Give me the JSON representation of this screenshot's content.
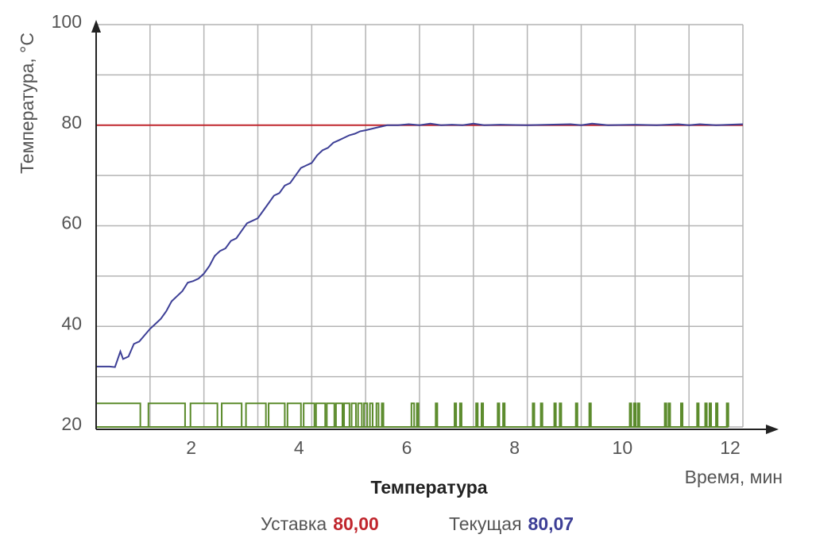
{
  "chart_data": {
    "type": "line",
    "title": "Температура",
    "ylabel": "Температура, °С",
    "xlabel": "Время, мин",
    "xlim": [
      0,
      12
    ],
    "ylim": [
      20,
      100
    ],
    "xticks": [
      2,
      4,
      6,
      8,
      10,
      12
    ],
    "xminor": [
      1,
      3,
      5,
      7,
      9,
      11
    ],
    "yticks": [
      20,
      40,
      60,
      80,
      100
    ],
    "yminor": [
      30,
      50,
      70,
      90
    ],
    "grid": true,
    "series": [
      {
        "name": "Уставка",
        "color": "#c0262d",
        "legend_value": 80.0,
        "legend_value_label": "80,00",
        "x": [
          0,
          12
        ],
        "values": [
          80,
          80
        ]
      },
      {
        "name": "Текущая",
        "color": "#3d3f96",
        "legend_value": 80.07,
        "legend_value_label": "80,07",
        "x": [
          0,
          0.25,
          0.35,
          0.45,
          0.5,
          0.6,
          0.7,
          0.8,
          1.0,
          1.1,
          1.2,
          1.3,
          1.4,
          1.5,
          1.6,
          1.7,
          1.8,
          1.9,
          2.0,
          2.1,
          2.2,
          2.3,
          2.4,
          2.5,
          2.6,
          2.7,
          2.8,
          2.9,
          3.0,
          3.1,
          3.2,
          3.3,
          3.4,
          3.5,
          3.6,
          3.7,
          3.8,
          3.9,
          4.0,
          4.1,
          4.2,
          4.3,
          4.4,
          4.5,
          4.6,
          4.7,
          4.8,
          4.9,
          5.0,
          5.2,
          5.4,
          5.6,
          5.8,
          6.0,
          6.2,
          6.4,
          6.6,
          6.8,
          7.0,
          7.2,
          7.5,
          8.0,
          8.4,
          8.8,
          9.0,
          9.2,
          9.5,
          10.0,
          10.4,
          10.8,
          11.0,
          11.2,
          11.5,
          12.0
        ],
        "values": [
          32,
          32,
          31.9,
          35,
          33.5,
          34,
          36.5,
          37,
          39.5,
          40.5,
          41.5,
          43,
          45,
          46,
          47,
          48.7,
          49,
          49.5,
          50.5,
          52,
          54,
          55,
          55.5,
          57,
          57.5,
          59,
          60.5,
          61,
          61.5,
          63,
          64.5,
          66,
          66.5,
          68,
          68.5,
          70,
          71.5,
          72,
          72.5,
          74,
          75,
          75.5,
          76.5,
          77,
          77.5,
          78,
          78.3,
          78.8,
          79,
          79.5,
          80,
          80,
          80.2,
          80,
          80.3,
          80,
          80.1,
          80,
          80.3,
          80,
          80.1,
          80,
          80.1,
          80.2,
          80,
          80.3,
          80,
          80.1,
          80,
          80.2,
          80,
          80.2,
          80,
          80.2
        ]
      }
    ],
    "pulses": {
      "color": "#5a8a2a",
      "low": 20,
      "high": 24.7,
      "start": [
        0,
        0.97,
        1.75,
        2.33,
        2.78,
        3.2,
        3.55,
        3.85,
        4.08,
        4.28,
        4.45,
        4.6,
        4.74,
        4.86,
        4.97,
        5.08,
        5.2,
        5.3,
        5.85,
        5.95,
        6.3,
        6.65,
        6.75,
        7.05,
        7.15,
        7.45,
        7.55,
        8.1,
        8.25,
        8.5,
        8.6,
        8.9,
        9.15,
        9.9,
        9.98,
        10.05,
        10.55,
        10.62,
        10.85,
        11.15,
        11.3,
        11.38,
        11.5,
        11.7
      ],
      "end": [
        0.82,
        1.65,
        2.25,
        2.7,
        3.15,
        3.5,
        3.8,
        4.05,
        4.25,
        4.42,
        4.57,
        4.7,
        4.82,
        4.93,
        5.03,
        5.13,
        5.24,
        5.33,
        5.9,
        5.98,
        6.33,
        6.68,
        6.78,
        7.08,
        7.18,
        7.48,
        7.58,
        8.13,
        8.28,
        8.53,
        8.63,
        8.93,
        9.18,
        9.93,
        10.01,
        10.08,
        10.58,
        10.65,
        10.88,
        11.18,
        11.33,
        11.41,
        11.53,
        11.73
      ]
    }
  }
}
